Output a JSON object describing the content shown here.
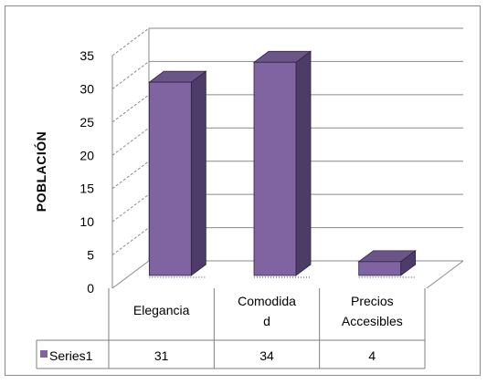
{
  "chart_data": {
    "type": "bar",
    "style": "3d-column",
    "categories": [
      "Elegancia",
      "Comodidad",
      "Precios Accesibles"
    ],
    "category_display_lines": [
      [
        "Elegancia"
      ],
      [
        "Comodida",
        "d"
      ],
      [
        "Precios",
        "Accesibles"
      ]
    ],
    "series": [
      {
        "name": "Series1",
        "values": [
          31,
          34,
          4
        ],
        "color": "#8064a2"
      }
    ],
    "ylabel": "POBLACIÓN",
    "ylim": [
      0,
      35
    ],
    "yticks": [
      0,
      5,
      10,
      15,
      20,
      25,
      30,
      35
    ],
    "grid": true,
    "data_table": true,
    "legend_in_table": true
  }
}
